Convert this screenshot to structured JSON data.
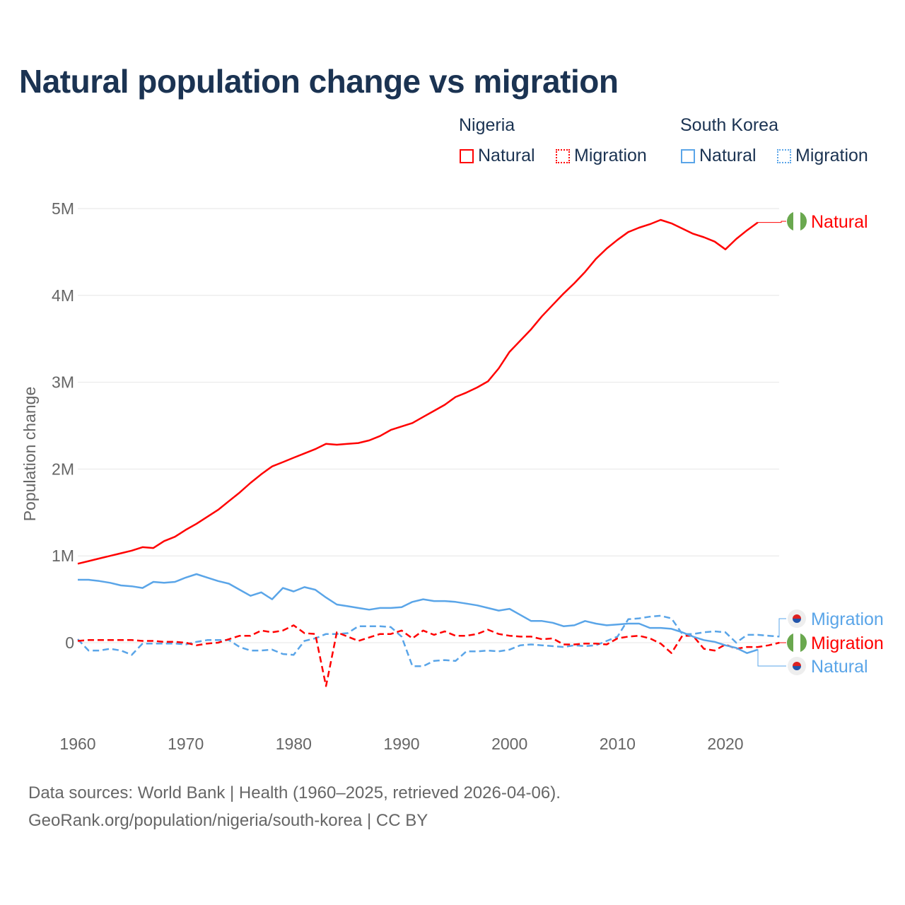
{
  "title": "Natural population change vs migration",
  "legend": {
    "groups": [
      {
        "name": "Nigeria",
        "items": [
          "Natural",
          "Migration"
        ],
        "color": "#ff0000"
      },
      {
        "name": "South Korea",
        "items": [
          "Natural",
          "Migration"
        ],
        "color": "#5aa5e8"
      }
    ]
  },
  "end_labels": {
    "ng_natural": "Natural",
    "kr_migration": "Migration",
    "ng_migration": "Migration",
    "kr_natural": "Natural"
  },
  "source": {
    "line1": "Data sources: World Bank | Health (1960–2025, retrieved 2026-04-06).",
    "line2": "GeoRank.org/population/nigeria/south-korea | CC BY"
  },
  "chart_data": {
    "type": "line",
    "title": "Natural population change vs migration",
    "xlabel": "",
    "ylabel": "Population change",
    "xlim": [
      1960,
      2025
    ],
    "ylim": [
      -0.8,
      5
    ],
    "x_ticks": [
      1960,
      1970,
      1980,
      1990,
      2000,
      2010,
      2020
    ],
    "x_tick_labels": [
      "1960",
      "1970",
      "1980",
      "1990",
      "2000",
      "2010",
      "2020"
    ],
    "y_ticks": [
      0,
      1,
      2,
      3,
      4,
      5
    ],
    "y_tick_labels": [
      "0",
      "1M",
      "2M",
      "3M",
      "4M",
      "5M"
    ],
    "y_unit": "millions",
    "grid": true,
    "legend_position": "top-right",
    "start_year": 1960,
    "series": [
      {
        "name": "Nigeria Natural",
        "color": "#ff0000",
        "dash": false,
        "values": [
          0.91,
          0.94,
          0.97,
          1.0,
          1.03,
          1.06,
          1.1,
          1.09,
          1.17,
          1.22,
          1.3,
          1.37,
          1.45,
          1.53,
          1.63,
          1.73,
          1.84,
          1.94,
          2.03,
          2.08,
          2.13,
          2.18,
          2.23,
          2.29,
          2.28,
          2.29,
          2.3,
          2.33,
          2.38,
          2.45,
          2.49,
          2.53,
          2.6,
          2.67,
          2.74,
          2.83,
          2.88,
          2.94,
          3.01,
          3.16,
          3.35,
          3.48,
          3.61,
          3.76,
          3.89,
          4.02,
          4.14,
          4.27,
          4.42,
          4.54,
          4.64,
          4.73,
          4.78,
          4.82,
          4.87,
          4.83,
          4.77,
          4.71,
          4.67,
          4.62,
          4.53,
          4.65,
          4.75,
          4.84
        ]
      },
      {
        "name": "South Korea Natural",
        "color": "#5aa5e8",
        "dash": false,
        "values": [
          0.725,
          0.725,
          0.71,
          0.69,
          0.66,
          0.65,
          0.63,
          0.7,
          0.69,
          0.7,
          0.75,
          0.79,
          0.75,
          0.71,
          0.68,
          0.61,
          0.54,
          0.58,
          0.5,
          0.63,
          0.59,
          0.64,
          0.61,
          0.52,
          0.44,
          0.42,
          0.4,
          0.38,
          0.4,
          0.4,
          0.41,
          0.47,
          0.5,
          0.48,
          0.48,
          0.47,
          0.45,
          0.43,
          0.4,
          0.37,
          0.39,
          0.32,
          0.25,
          0.25,
          0.23,
          0.19,
          0.2,
          0.25,
          0.22,
          0.2,
          0.21,
          0.22,
          0.22,
          0.17,
          0.17,
          0.16,
          0.12,
          0.07,
          0.03,
          0.01,
          -0.03,
          -0.06,
          -0.12,
          -0.08
        ]
      },
      {
        "name": "Nigeria Migration",
        "color": "#ff0000",
        "dash": true,
        "values": [
          0.02,
          0.03,
          0.03,
          0.03,
          0.03,
          0.03,
          0.02,
          0.02,
          0.01,
          0.01,
          0.0,
          -0.03,
          -0.01,
          0.0,
          0.04,
          0.08,
          0.08,
          0.14,
          0.12,
          0.14,
          0.2,
          0.11,
          0.1,
          -0.5,
          0.12,
          0.07,
          0.02,
          0.06,
          0.1,
          0.1,
          0.14,
          0.05,
          0.14,
          0.09,
          0.13,
          0.08,
          0.08,
          0.1,
          0.15,
          0.1,
          0.08,
          0.07,
          0.07,
          0.04,
          0.05,
          -0.02,
          -0.02,
          -0.01,
          -0.01,
          -0.02,
          0.05,
          0.07,
          0.08,
          0.05,
          -0.01,
          -0.12,
          0.08,
          0.08,
          -0.07,
          -0.09,
          -0.02,
          -0.07,
          -0.05,
          -0.05,
          -0.03,
          0.0
        ]
      },
      {
        "name": "South Korea Migration",
        "color": "#5aa5e8",
        "dash": true,
        "values": [
          0.04,
          -0.09,
          -0.09,
          -0.07,
          -0.09,
          -0.14,
          -0.01,
          -0.01,
          -0.01,
          -0.01,
          -0.02,
          0.01,
          0.03,
          0.03,
          0.03,
          -0.05,
          -0.09,
          -0.09,
          -0.08,
          -0.13,
          -0.14,
          0.02,
          0.05,
          0.1,
          0.1,
          0.11,
          0.19,
          0.19,
          0.19,
          0.18,
          0.07,
          -0.27,
          -0.27,
          -0.21,
          -0.2,
          -0.21,
          -0.1,
          -0.1,
          -0.09,
          -0.1,
          -0.08,
          -0.03,
          -0.02,
          -0.03,
          -0.04,
          -0.05,
          -0.03,
          -0.04,
          -0.03,
          0.02,
          0.07,
          0.27,
          0.28,
          0.3,
          0.31,
          0.28,
          0.1,
          0.1,
          0.12,
          0.13,
          0.12,
          0.0,
          0.09,
          0.09,
          0.08,
          0.07
        ]
      }
    ]
  }
}
